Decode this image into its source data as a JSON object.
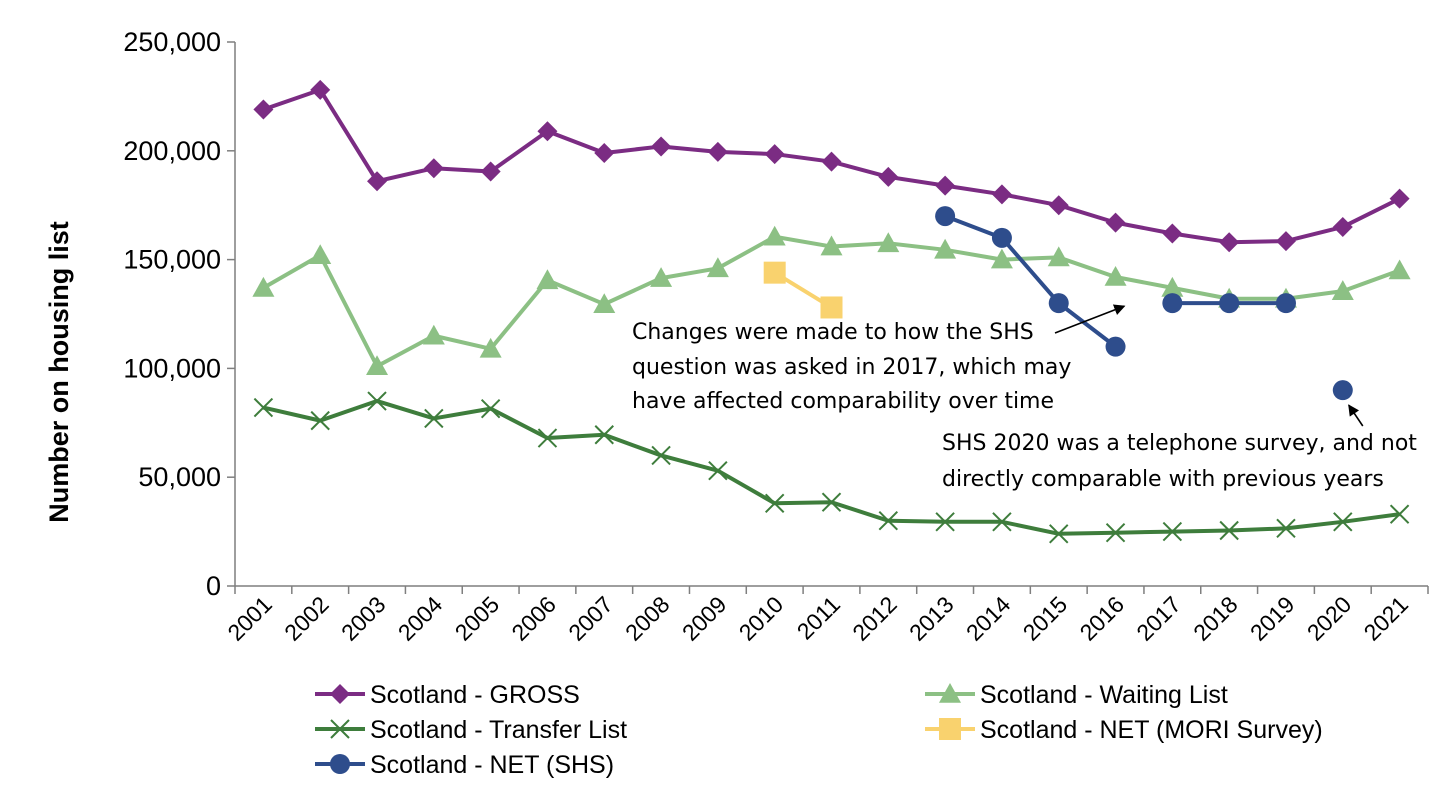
{
  "chart_data": {
    "type": "line",
    "title": "",
    "xlabel": "",
    "ylabel": "Number on housing list",
    "ylim": [
      0,
      250000
    ],
    "yticks": [
      0,
      50000,
      100000,
      150000,
      200000,
      250000
    ],
    "ytick_labels": [
      "0",
      "50,000",
      "100,000",
      "150,000",
      "200,000",
      "250,000"
    ],
    "categories": [
      "2001",
      "2002",
      "2003",
      "2004",
      "2005",
      "2006",
      "2007",
      "2008",
      "2009",
      "2010",
      "2011",
      "2012",
      "2013",
      "2014",
      "2015",
      "2016",
      "2017",
      "2018",
      "2019",
      "2020",
      "2021"
    ],
    "grid": false,
    "legend_position": "bottom",
    "series": [
      {
        "name": "Scotland - GROSS",
        "color": "#7B2C83",
        "marker": "diamond",
        "values": [
          219000,
          228000,
          186000,
          192000,
          190500,
          209000,
          199000,
          202000,
          199500,
          198500,
          195000,
          188000,
          184000,
          180000,
          175000,
          167000,
          162000,
          158000,
          158500,
          165000,
          178000
        ]
      },
      {
        "name": "Scotland - Waiting List",
        "color": "#8CC084",
        "marker": "triangle",
        "values": [
          137000,
          152000,
          101000,
          115000,
          109000,
          140500,
          129500,
          141500,
          146000,
          160500,
          156000,
          157500,
          154500,
          150000,
          151000,
          142000,
          137000,
          132000,
          132000,
          135500,
          145000
        ]
      },
      {
        "name": "Scotland - Transfer List",
        "color": "#3E7D3C",
        "marker": "x",
        "values": [
          82000,
          76000,
          85000,
          77000,
          81500,
          68000,
          69500,
          60000,
          53000,
          38000,
          38500,
          30000,
          29500,
          29500,
          24000,
          24500,
          25000,
          25500,
          26500,
          29500,
          33000
        ]
      },
      {
        "name": "Scotland - NET (MORI Survey)",
        "color": "#F9D26E",
        "marker": "square",
        "values": [
          null,
          null,
          null,
          null,
          null,
          null,
          null,
          null,
          null,
          144000,
          128000,
          null,
          null,
          null,
          null,
          null,
          null,
          null,
          null,
          null,
          null
        ]
      },
      {
        "name": "Scotland - NET (SHS)",
        "color": "#2E4D8C",
        "marker": "circle",
        "values": [
          null,
          null,
          null,
          null,
          null,
          null,
          null,
          null,
          null,
          null,
          null,
          null,
          170000,
          160000,
          130000,
          110000,
          130000,
          130000,
          130000,
          90000,
          null
        ],
        "break_before_index": 16,
        "isolated_index": 19
      }
    ],
    "annotations": [
      {
        "lines": [
          "Changes were made to how the SHS",
          "question was asked in 2017, which may",
          "have affected comparability over time"
        ],
        "arrow_to_year": "2017",
        "arrow_to_value": 130000
      },
      {
        "lines": [
          "SHS 2020 was a telephone survey, and not",
          "directly comparable with previous years"
        ],
        "arrow_to_year": "2020",
        "arrow_to_value": 90000
      }
    ]
  }
}
